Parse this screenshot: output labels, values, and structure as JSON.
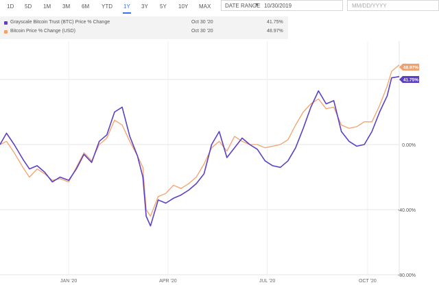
{
  "toolbar": {
    "ranges": [
      "1D",
      "5D",
      "1M",
      "3M",
      "6M",
      "YTD",
      "1Y",
      "3Y",
      "5Y",
      "10Y",
      "MAX"
    ],
    "active_range": "1Y",
    "date_range_label": "DATE RANGE",
    "date_from": "10/30/2019",
    "date_to_placeholder": "MM/DD/YYYY"
  },
  "legend": [
    {
      "name": "Grayscale Bitcoin Trust (BTC) Price % Change",
      "date": "Oct 30 '20",
      "value": "41.75%",
      "color": "#5b3fc4"
    },
    {
      "name": "Bitcoin Price % Change (USD)",
      "date": "Oct 30 '20",
      "value": "48.97%",
      "color": "#f4a06a"
    }
  ],
  "chart_data": {
    "type": "line",
    "x_ticks": [
      "JAN '20",
      "APR '20",
      "JUL '20",
      "OCT '20"
    ],
    "y_ticks": [
      "0.00%",
      "-40.00%",
      "-80.00%"
    ],
    "ylim": [
      -80,
      50
    ],
    "xlim": [
      "2019-10-30",
      "2020-10-30"
    ],
    "series": [
      {
        "name": "Grayscale Bitcoin Trust (BTC) Price % Change",
        "color": "#5b3fc4",
        "end_label": "41.75%",
        "points": [
          [
            "2019-10-30",
            0
          ],
          [
            "2019-11-05",
            7
          ],
          [
            "2019-11-12",
            0
          ],
          [
            "2019-11-20",
            -9
          ],
          [
            "2019-11-26",
            -15
          ],
          [
            "2019-12-03",
            -13
          ],
          [
            "2019-12-10",
            -17
          ],
          [
            "2019-12-17",
            -23
          ],
          [
            "2019-12-24",
            -20
          ],
          [
            "2020-01-01",
            -22
          ],
          [
            "2020-01-08",
            -15
          ],
          [
            "2020-01-15",
            -6
          ],
          [
            "2020-01-22",
            -11
          ],
          [
            "2020-01-29",
            2
          ],
          [
            "2020-02-05",
            6
          ],
          [
            "2020-02-12",
            20
          ],
          [
            "2020-02-19",
            23
          ],
          [
            "2020-02-26",
            5
          ],
          [
            "2020-03-04",
            -7
          ],
          [
            "2020-03-09",
            -20
          ],
          [
            "2020-03-12",
            -44
          ],
          [
            "2020-03-16",
            -50
          ],
          [
            "2020-03-23",
            -34
          ],
          [
            "2020-03-30",
            -36
          ],
          [
            "2020-04-06",
            -33
          ],
          [
            "2020-04-13",
            -31
          ],
          [
            "2020-04-20",
            -28
          ],
          [
            "2020-04-27",
            -24
          ],
          [
            "2020-05-04",
            -18
          ],
          [
            "2020-05-11",
            0
          ],
          [
            "2020-05-18",
            8
          ],
          [
            "2020-05-25",
            -8
          ],
          [
            "2020-06-01",
            -2
          ],
          [
            "2020-06-08",
            4
          ],
          [
            "2020-06-15",
            0
          ],
          [
            "2020-06-22",
            -3
          ],
          [
            "2020-06-29",
            -10
          ],
          [
            "2020-07-06",
            -13
          ],
          [
            "2020-07-13",
            -14
          ],
          [
            "2020-07-20",
            -10
          ],
          [
            "2020-07-27",
            -2
          ],
          [
            "2020-08-03",
            10
          ],
          [
            "2020-08-10",
            23
          ],
          [
            "2020-08-17",
            33
          ],
          [
            "2020-08-24",
            25
          ],
          [
            "2020-08-31",
            27
          ],
          [
            "2020-09-07",
            8
          ],
          [
            "2020-09-14",
            2
          ],
          [
            "2020-09-21",
            -1
          ],
          [
            "2020-09-28",
            0
          ],
          [
            "2020-10-05",
            8
          ],
          [
            "2020-10-12",
            20
          ],
          [
            "2020-10-19",
            30
          ],
          [
            "2020-10-23",
            41
          ],
          [
            "2020-10-30",
            41.75
          ]
        ]
      },
      {
        "name": "Bitcoin Price % Change (USD)",
        "color": "#f4a06a",
        "end_label": "48.97%",
        "points": [
          [
            "2019-10-30",
            0
          ],
          [
            "2019-11-05",
            2
          ],
          [
            "2019-11-12",
            -5
          ],
          [
            "2019-11-20",
            -14
          ],
          [
            "2019-11-26",
            -20
          ],
          [
            "2019-12-03",
            -15
          ],
          [
            "2019-12-10",
            -18
          ],
          [
            "2019-12-17",
            -22
          ],
          [
            "2019-12-24",
            -21
          ],
          [
            "2020-01-01",
            -23
          ],
          [
            "2020-01-08",
            -14
          ],
          [
            "2020-01-15",
            -5
          ],
          [
            "2020-01-22",
            -10
          ],
          [
            "2020-01-29",
            0
          ],
          [
            "2020-02-05",
            4
          ],
          [
            "2020-02-12",
            15
          ],
          [
            "2020-02-19",
            12
          ],
          [
            "2020-02-26",
            2
          ],
          [
            "2020-03-04",
            -7
          ],
          [
            "2020-03-09",
            -14
          ],
          [
            "2020-03-12",
            -40
          ],
          [
            "2020-03-16",
            -44
          ],
          [
            "2020-03-23",
            -32
          ],
          [
            "2020-03-30",
            -30
          ],
          [
            "2020-04-06",
            -25
          ],
          [
            "2020-04-13",
            -27
          ],
          [
            "2020-04-20",
            -24
          ],
          [
            "2020-04-27",
            -20
          ],
          [
            "2020-05-04",
            -12
          ],
          [
            "2020-05-11",
            -2
          ],
          [
            "2020-05-18",
            2
          ],
          [
            "2020-05-25",
            -4
          ],
          [
            "2020-06-01",
            5
          ],
          [
            "2020-06-08",
            2
          ],
          [
            "2020-06-15",
            0
          ],
          [
            "2020-06-22",
            0
          ],
          [
            "2020-06-29",
            -2
          ],
          [
            "2020-07-06",
            -1
          ],
          [
            "2020-07-13",
            0
          ],
          [
            "2020-07-20",
            3
          ],
          [
            "2020-07-27",
            12
          ],
          [
            "2020-08-03",
            20
          ],
          [
            "2020-08-10",
            25
          ],
          [
            "2020-08-17",
            28
          ],
          [
            "2020-08-24",
            22
          ],
          [
            "2020-08-31",
            23
          ],
          [
            "2020-09-07",
            12
          ],
          [
            "2020-09-14",
            10
          ],
          [
            "2020-09-21",
            11
          ],
          [
            "2020-09-28",
            14
          ],
          [
            "2020-10-05",
            14
          ],
          [
            "2020-10-12",
            24
          ],
          [
            "2020-10-19",
            36
          ],
          [
            "2020-10-23",
            45
          ],
          [
            "2020-10-30",
            48.97
          ]
        ]
      }
    ]
  }
}
